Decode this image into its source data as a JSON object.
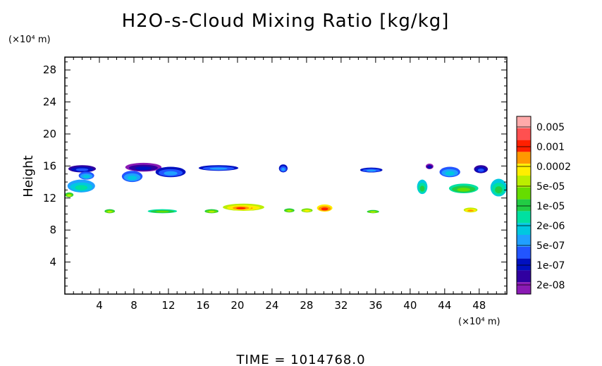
{
  "chart_data": {
    "type": "heatmap",
    "title": "H2O-s-Cloud Mixing Ratio [kg/kg]",
    "xlabel": "",
    "ylabel": "Height",
    "x_unit": "(×10⁴ m)",
    "y_unit": "(×10⁴ m)",
    "xlim": [
      0,
      51.2
    ],
    "ylim": [
      0,
      29.6
    ],
    "x_ticks": [
      "4",
      "8",
      "12",
      "16",
      "20",
      "24",
      "28",
      "32",
      "36",
      "40",
      "44",
      "48"
    ],
    "y_ticks": [
      "4",
      "8",
      "12",
      "16",
      "20",
      "24",
      "28"
    ],
    "footer": "TIME  =  1014768.0",
    "colorbar": {
      "labels": [
        "0.005",
        "0.001",
        "0.0002",
        "5e-05",
        "1e-05",
        "2e-06",
        "5e-07",
        "1e-07",
        "2e-08"
      ],
      "colors": [
        "#ffaaaa",
        "#ff5050",
        "#ff2000",
        "#ff9900",
        "#ffee00",
        "#bbee00",
        "#66dd00",
        "#22cc44",
        "#00e0a0",
        "#00c8e0",
        "#20a0ff",
        "#2255ff",
        "#0010c0",
        "#3000a0",
        "#8a1ab4"
      ]
    },
    "cloud_cells": [
      {
        "x": 0.3,
        "y": 12.7,
        "w": 3.2,
        "h": 1.6,
        "level": 9
      },
      {
        "x": 0.4,
        "y": 15.2,
        "w": 3.2,
        "h": 0.9,
        "level": 12
      },
      {
        "x": 1.6,
        "y": 14.3,
        "w": 1.8,
        "h": 1.0,
        "level": 10
      },
      {
        "x": 0.0,
        "y": 12.1,
        "w": 1.0,
        "h": 0.6,
        "level": 6
      },
      {
        "x": 7.0,
        "y": 15.3,
        "w": 4.2,
        "h": 1.1,
        "level": 13
      },
      {
        "x": 6.6,
        "y": 14.0,
        "w": 2.4,
        "h": 1.4,
        "level": 10
      },
      {
        "x": 10.5,
        "y": 14.6,
        "w": 3.5,
        "h": 1.3,
        "level": 11
      },
      {
        "x": 15.5,
        "y": 15.4,
        "w": 4.6,
        "h": 0.7,
        "level": 11
      },
      {
        "x": 24.8,
        "y": 15.2,
        "w": 1.0,
        "h": 1.0,
        "level": 11
      },
      {
        "x": 34.2,
        "y": 15.2,
        "w": 2.6,
        "h": 0.6,
        "level": 11
      },
      {
        "x": 40.8,
        "y": 12.5,
        "w": 1.2,
        "h": 1.8,
        "level": 8
      },
      {
        "x": 41.8,
        "y": 15.6,
        "w": 0.9,
        "h": 0.7,
        "level": 13
      },
      {
        "x": 43.4,
        "y": 14.6,
        "w": 2.4,
        "h": 1.3,
        "level": 10
      },
      {
        "x": 44.5,
        "y": 12.6,
        "w": 3.4,
        "h": 1.2,
        "level": 7
      },
      {
        "x": 47.4,
        "y": 15.1,
        "w": 1.6,
        "h": 1.0,
        "level": 12
      },
      {
        "x": 49.3,
        "y": 12.2,
        "w": 1.9,
        "h": 2.2,
        "level": 8
      },
      {
        "x": 4.6,
        "y": 10.1,
        "w": 1.2,
        "h": 0.5,
        "level": 6
      },
      {
        "x": 9.6,
        "y": 10.1,
        "w": 3.4,
        "h": 0.5,
        "level": 7
      },
      {
        "x": 16.2,
        "y": 10.1,
        "w": 1.6,
        "h": 0.5,
        "level": 6
      },
      {
        "x": 18.3,
        "y": 10.4,
        "w": 4.8,
        "h": 0.9,
        "level": 4
      },
      {
        "x": 19.2,
        "y": 10.5,
        "w": 2.4,
        "h": 0.6,
        "level": 3
      },
      {
        "x": 25.4,
        "y": 10.2,
        "w": 1.2,
        "h": 0.5,
        "level": 6
      },
      {
        "x": 27.4,
        "y": 10.2,
        "w": 1.3,
        "h": 0.5,
        "level": 5
      },
      {
        "x": 29.2,
        "y": 10.3,
        "w": 1.8,
        "h": 0.9,
        "level": 3
      },
      {
        "x": 35.0,
        "y": 10.1,
        "w": 1.4,
        "h": 0.4,
        "level": 6
      },
      {
        "x": 46.2,
        "y": 10.2,
        "w": 1.6,
        "h": 0.6,
        "level": 4
      }
    ]
  }
}
